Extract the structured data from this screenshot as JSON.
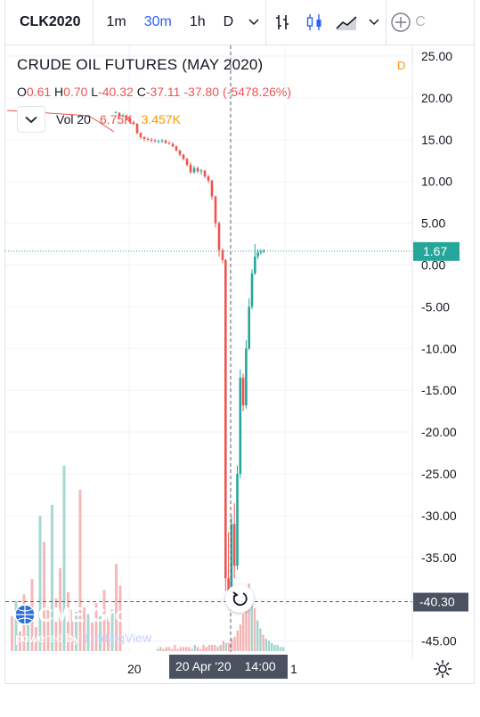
{
  "toolbar": {
    "symbol": "CLK2020",
    "intervals": [
      "1m",
      "30m",
      "1h",
      "D"
    ],
    "active_interval": "30m",
    "compare_label": "C"
  },
  "header": {
    "title": "CRUDE OIL FUTURES (MAY 2020)",
    "mode_badge": "D",
    "ohlc": {
      "o_label": "O",
      "o_value": "0.61",
      "h_label": "H",
      "h_value": "0.70",
      "l_label": "L",
      "l_value": "-40.32",
      "c_label": "C",
      "c_value": "-37.11",
      "change": "-37.80 (-5478.26%)"
    },
    "volume": {
      "label": "Vol 20",
      "value1": "6.75K",
      "value2": "3.457K"
    }
  },
  "branding": {
    "logo_text": "CME Group",
    "powered_by": "powered by",
    "powered_brand": "TradingView"
  },
  "colors": {
    "up": "#26a69a",
    "down": "#ef5350",
    "accent": "#2962ff",
    "last_price": "#26a69a",
    "crosshair_label": "#4a5160",
    "vol_up": "#8fcfc7",
    "vol_down": "#f4a6a6"
  },
  "chart_data": {
    "type": "candlestick",
    "title": "CRUDE OIL FUTURES (MAY 2020)",
    "ylim": [
      -46.5,
      27
    ],
    "y_ticks": [
      "25.00",
      "20.00",
      "15.00",
      "10.00",
      "5.00",
      "0.00",
      "-5.00",
      "-10.00",
      "-15.00",
      "-20.00",
      "-25.00",
      "-30.00",
      "-35.00",
      "-40.00",
      "-45.00"
    ],
    "y_tick_values": [
      25,
      20,
      15,
      10,
      5,
      0,
      -5,
      -10,
      -15,
      -20,
      -25,
      -30,
      -35,
      -40,
      -45
    ],
    "last_price": 1.67,
    "last_price_label": "1.67",
    "crosshair_price": -40.3,
    "crosshair_price_label": "-40.30",
    "x_labels": [
      "20",
      "20 Apr '20",
      "14:00",
      "1"
    ],
    "candles": [
      [
        18.3,
        18.4,
        18.2,
        18.3
      ],
      [
        18.2,
        18.3,
        17.6,
        17.8
      ],
      [
        17.8,
        18.1,
        17.6,
        17.9
      ],
      [
        17.9,
        18.0,
        17.5,
        17.6
      ],
      [
        17.6,
        17.8,
        16.9,
        17.1
      ],
      [
        17.1,
        17.3,
        16.7,
        16.9
      ],
      [
        16.9,
        17.0,
        15.6,
        15.8
      ],
      [
        15.8,
        15.9,
        15.1,
        15.3
      ],
      [
        15.3,
        15.4,
        14.8,
        15.1
      ],
      [
        15.1,
        15.3,
        14.8,
        15.0
      ],
      [
        15.0,
        15.2,
        14.7,
        14.9
      ],
      [
        14.9,
        15.1,
        14.7,
        14.8
      ],
      [
        14.8,
        15.0,
        14.6,
        14.8
      ],
      [
        14.8,
        15.1,
        14.6,
        14.9
      ],
      [
        14.9,
        15.0,
        14.5,
        14.6
      ],
      [
        14.6,
        14.8,
        14.4,
        14.5
      ],
      [
        14.5,
        14.7,
        14.1,
        14.2
      ],
      [
        14.2,
        14.3,
        13.6,
        13.7
      ],
      [
        13.7,
        13.8,
        13.0,
        13.2
      ],
      [
        13.2,
        13.3,
        12.5,
        12.7
      ],
      [
        12.7,
        12.8,
        11.8,
        12.0
      ],
      [
        12.0,
        12.3,
        10.9,
        11.1
      ],
      [
        11.1,
        11.9,
        10.9,
        11.6
      ],
      [
        11.6,
        11.8,
        11.0,
        11.2
      ],
      [
        11.2,
        11.5,
        10.8,
        11.3
      ],
      [
        11.3,
        11.4,
        10.4,
        10.6
      ],
      [
        10.6,
        10.8,
        9.8,
        10.1
      ],
      [
        10.1,
        10.2,
        7.8,
        8.2
      ],
      [
        8.2,
        8.3,
        4.5,
        5.0
      ],
      [
        5.0,
        5.2,
        1.0,
        1.8
      ],
      [
        1.8,
        2.0,
        0.2,
        0.6
      ],
      [
        0.6,
        0.7,
        -39.0,
        -37.5
      ],
      [
        -37.5,
        -32.0,
        -40.32,
        -39.0
      ],
      [
        -39.0,
        -30.0,
        -39.5,
        -31.0
      ],
      [
        -31.0,
        -28.5,
        -37.5,
        -36.0
      ],
      [
        -36.0,
        -24.0,
        -36.5,
        -25.0
      ],
      [
        -25.0,
        -12.5,
        -25.5,
        -13.5
      ],
      [
        -13.5,
        -13.0,
        -17.5,
        -16.8
      ],
      [
        -16.8,
        -9.0,
        -17.2,
        -10.0
      ],
      [
        -10.0,
        -4.0,
        -10.2,
        -5.0
      ],
      [
        -5.0,
        -0.5,
        -5.3,
        -1.0
      ],
      [
        -1.0,
        2.5,
        -1.2,
        1.0
      ],
      [
        1.0,
        1.9,
        0.7,
        1.5
      ],
      [
        1.5,
        1.9,
        1.2,
        1.6
      ],
      [
        1.6,
        1.9,
        1.4,
        1.7
      ]
    ],
    "volume": [
      [
        1,
        0
      ],
      [
        1,
        1
      ],
      [
        0,
        1
      ],
      [
        2,
        0
      ],
      [
        1,
        1
      ],
      [
        0,
        1
      ],
      [
        1,
        2
      ],
      [
        1,
        0
      ],
      [
        2,
        0
      ],
      [
        1,
        1
      ],
      [
        0,
        2
      ],
      [
        1,
        1
      ],
      [
        1,
        0
      ],
      [
        2,
        1
      ],
      [
        1,
        1
      ],
      [
        1,
        0
      ],
      [
        2,
        1
      ],
      [
        1,
        1
      ],
      [
        2,
        1
      ],
      [
        1,
        2
      ],
      [
        2,
        1
      ],
      [
        1,
        1
      ],
      [
        2,
        1
      ],
      [
        3,
        2
      ],
      [
        2,
        2
      ],
      [
        3,
        1
      ],
      [
        4,
        2
      ],
      [
        5,
        2
      ],
      [
        7,
        3
      ],
      [
        9,
        4
      ],
      [
        13,
        5
      ],
      [
        19,
        6
      ],
      [
        24,
        9
      ],
      [
        16,
        10
      ],
      [
        13,
        8
      ],
      [
        8,
        7
      ],
      [
        5,
        6
      ],
      [
        4,
        4
      ],
      [
        3,
        3
      ],
      [
        2,
        3
      ],
      [
        2,
        2
      ],
      [
        1,
        2
      ],
      [
        1,
        2
      ],
      [
        1,
        1
      ],
      [
        1,
        1
      ]
    ],
    "past_volume": [
      [
        0,
        16
      ],
      [
        0,
        23
      ],
      [
        1,
        9
      ],
      [
        0,
        26
      ],
      [
        1,
        12
      ],
      [
        0,
        33
      ],
      [
        1,
        11
      ],
      [
        0,
        62
      ],
      [
        0,
        50
      ],
      [
        0,
        20
      ],
      [
        0,
        67
      ],
      [
        0,
        24
      ],
      [
        0,
        38
      ],
      [
        0,
        85
      ],
      [
        0,
        27
      ],
      [
        0,
        19
      ],
      [
        0,
        18
      ],
      [
        0,
        74
      ],
      [
        0,
        20
      ],
      [
        0,
        17
      ],
      [
        0,
        13
      ],
      [
        0,
        22
      ],
      [
        0,
        16
      ],
      [
        0,
        28
      ],
      [
        0,
        15
      ],
      [
        0,
        19
      ],
      [
        0,
        40
      ],
      [
        0,
        30
      ]
    ]
  }
}
